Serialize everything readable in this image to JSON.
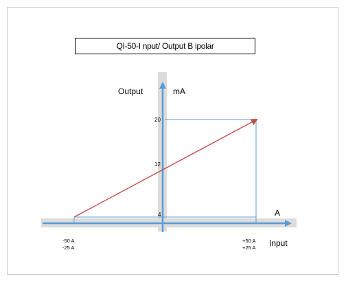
{
  "title": "QI-50-I nput/ Output B ipolar",
  "axes": {
    "y_label": "Output",
    "y_unit": "mA",
    "x_label": "Input",
    "x_unit": "A"
  },
  "y_ticks": [
    "20",
    "12",
    "4"
  ],
  "x_ticks": {
    "left": [
      "-50 A",
      "-25 A"
    ],
    "right": [
      "+50 A",
      "+25 A"
    ]
  },
  "colors": {
    "axis": "#5b9bd5",
    "axis_band": "#dcdcdc",
    "line": "#c0504d",
    "guide": "#5b9bd5"
  }
}
